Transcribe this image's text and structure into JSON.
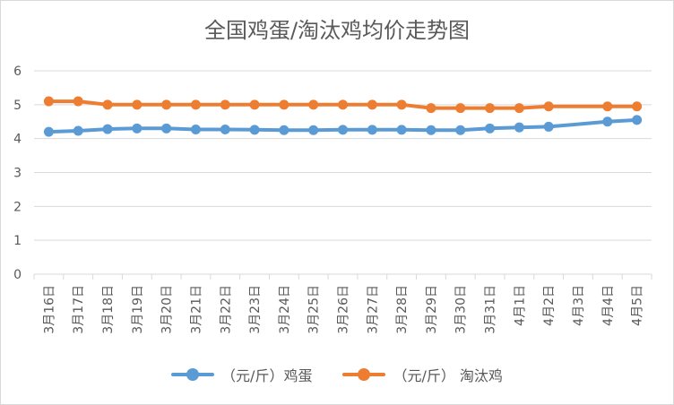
{
  "colors": {
    "egg": "#5b9bd5",
    "hen": "#ed7d31",
    "grid": "#d9d9d9",
    "text": "#595959"
  },
  "chart_data": {
    "type": "line",
    "title": "全国鸡蛋/淘汰鸡均价走势图",
    "xlabel": "",
    "ylabel": "",
    "ylim": [
      0,
      6
    ],
    "yticks": [
      "0",
      "1",
      "2",
      "3",
      "4",
      "5",
      "6"
    ],
    "categories": [
      "3月16日",
      "3月17日",
      "3月18日",
      "3月19日",
      "3月20日",
      "3月21日",
      "3月22日",
      "3月23日",
      "3月24日",
      "3月25日",
      "3月26日",
      "3月27日",
      "3月28日",
      "3月29日",
      "3月30日",
      "3月31日",
      "4月1日",
      "4月2日",
      "4月3日",
      "4月4日",
      "4月5日"
    ],
    "grid": true,
    "legend_position": "bottom",
    "series": [
      {
        "name": "（元/斤）鸡蛋",
        "values": [
          4.2,
          4.23,
          4.28,
          4.3,
          4.3,
          4.27,
          4.27,
          4.26,
          4.25,
          4.25,
          4.26,
          4.26,
          4.26,
          4.25,
          4.25,
          4.3,
          4.33,
          4.35,
          null,
          4.5,
          4.55
        ]
      },
      {
        "name": "（元/斤） 淘汰鸡",
        "values": [
          5.1,
          5.1,
          5.0,
          5.0,
          5.0,
          5.0,
          5.0,
          5.0,
          5.0,
          5.0,
          5.0,
          5.0,
          5.0,
          4.9,
          4.9,
          4.9,
          4.9,
          4.95,
          null,
          4.95,
          4.95
        ]
      }
    ]
  }
}
